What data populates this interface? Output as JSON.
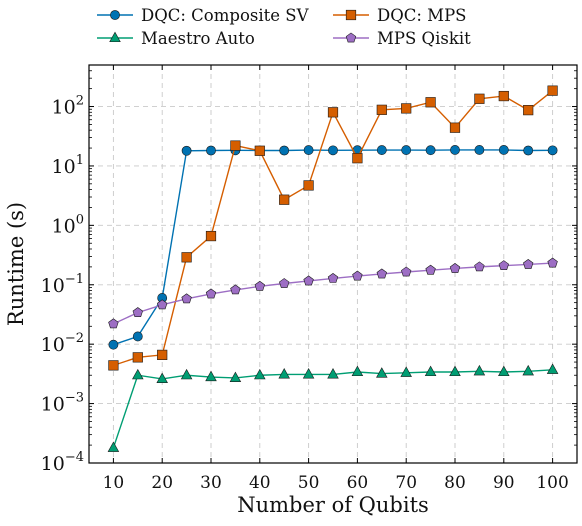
{
  "chart_data": {
    "type": "line",
    "title": "",
    "xlabel": "Number of Qubits",
    "ylabel": "Runtime (s)",
    "xlim": [
      5,
      105
    ],
    "ylim": [
      0.0001,
      500
    ],
    "yscale": "log",
    "grid": true,
    "legend_position": "top",
    "x_ticks": [
      10,
      20,
      30,
      40,
      50,
      60,
      70,
      80,
      90,
      100
    ],
    "y_ticks": [
      0.0001,
      0.001,
      0.01,
      0.1,
      1,
      10,
      100
    ],
    "y_tick_labels": [
      {
        "base": "10",
        "exp": "−4"
      },
      {
        "base": "10",
        "exp": "−3"
      },
      {
        "base": "10",
        "exp": "−2"
      },
      {
        "base": "10",
        "exp": "−1"
      },
      {
        "base": "10",
        "exp": "0"
      },
      {
        "base": "10",
        "exp": "1"
      },
      {
        "base": "10",
        "exp": "2"
      }
    ],
    "x": [
      10,
      15,
      20,
      25,
      30,
      35,
      40,
      45,
      50,
      55,
      60,
      65,
      70,
      75,
      80,
      85,
      90,
      95,
      100
    ],
    "series": [
      {
        "name": "DQC: Composite SV",
        "color": "#0072b2",
        "marker": "circle",
        "values": [
          0.0098,
          0.0135,
          0.06,
          18,
          18.2,
          18.3,
          18.2,
          18.2,
          18.5,
          18.3,
          18.4,
          18.5,
          18.5,
          18.4,
          18.6,
          18.6,
          18.6,
          18.2,
          18.3
        ]
      },
      {
        "name": "DQC: MPS",
        "color": "#d55e00",
        "marker": "square",
        "values": [
          0.0044,
          0.006,
          0.0066,
          0.29,
          0.66,
          22,
          18,
          2.7,
          4.7,
          80,
          13.5,
          88,
          93,
          118,
          44,
          135,
          150,
          87,
          185
        ]
      },
      {
        "name": "Maestro Auto",
        "color": "#009e73",
        "marker": "triangle",
        "values": [
          0.00018,
          0.003,
          0.0026,
          0.003,
          0.0028,
          0.0027,
          0.003,
          0.0031,
          0.0031,
          0.0031,
          0.0034,
          0.0032,
          0.0033,
          0.0034,
          0.0034,
          0.0035,
          0.0034,
          0.0035,
          0.0037
        ]
      },
      {
        "name": "MPS Qiskit",
        "color": "#9d6ec4",
        "marker": "pentagon",
        "values": [
          0.022,
          0.034,
          0.046,
          0.058,
          0.07,
          0.082,
          0.094,
          0.105,
          0.116,
          0.128,
          0.14,
          0.152,
          0.164,
          0.176,
          0.188,
          0.2,
          0.21,
          0.22,
          0.232
        ]
      }
    ]
  }
}
